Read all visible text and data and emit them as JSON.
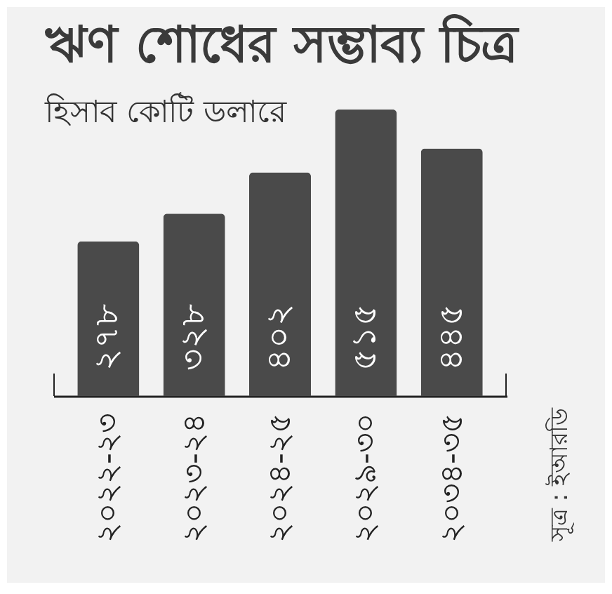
{
  "chart_data": {
    "type": "bar",
    "title": "ঋণ শোধের সম্ভাব্য চিত্র",
    "subtitle": "হিসাব কোটি ডলারে",
    "categories": [
      "২০২২-২৩",
      "২০২৩-২৪",
      "২০২৪-২৫",
      "২০২৯-৩০",
      "২০৩৪-৩৫"
    ],
    "values": [
      278,
      328,
      402,
      515,
      445
    ],
    "color": "#4a4a4a",
    "value_labels": [
      "২৭৮",
      "৩২৮",
      "৪০২",
      "৫১৫",
      "৪৪৫"
    ],
    "annotations": [
      "সূত্র : ইআরডি"
    ]
  }
}
